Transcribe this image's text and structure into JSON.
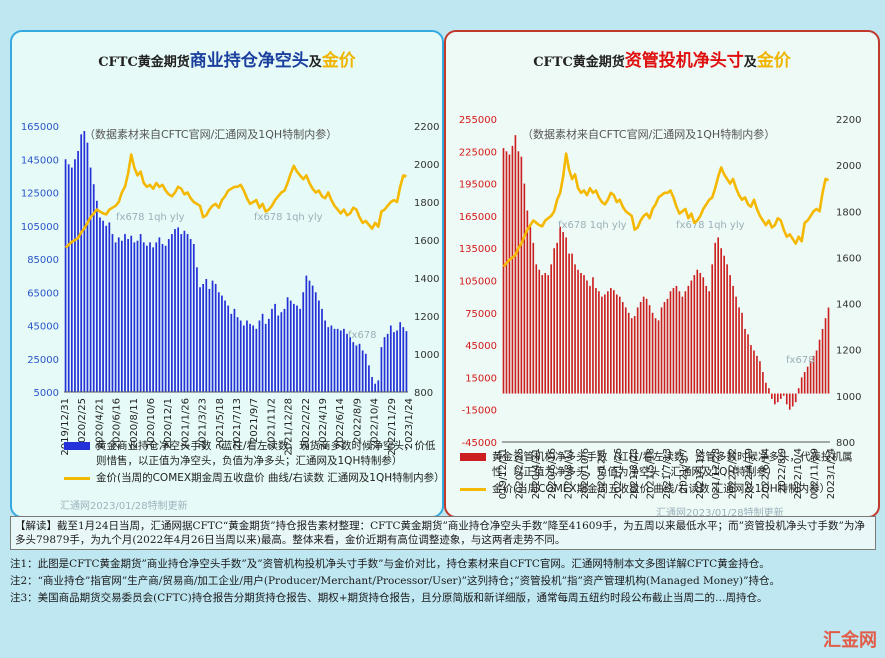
{
  "left_panel": {
    "title": {
      "part1": "CFTC黄金期货",
      "part2": "商业持仓净空头",
      "part3": "及",
      "part4": "金价"
    },
    "title_color": "#1b3f9e",
    "source_note": "（数据素材来自CFTC官网/汇通网及1QH特制内参）",
    "watermark1": "fx678 1qh yly",
    "watermark2": "fx678 1qh yly",
    "watermark3": "fx678",
    "legend_bar": "黄金商业持仓净空头手数（蓝柱/看左读数，现货商多数时候净空头，价低则惜售，以正值为净空头，负值为净多头；汇通网及1QH特制参）",
    "legend_line": "金价(当周的COMEX期金周五收盘价 曲线/右读数 汇通网及1QH特制内参）",
    "credit": "汇通网2023/01/28特制更新"
  },
  "right_panel": {
    "title": {
      "part1": "CFTC黄金期货",
      "part2": "资管投机净头寸",
      "part3": "及",
      "part4": "金价"
    },
    "title_color": "#e01010",
    "source_note": "（数据素材来自CFTC官网/汇通网及1QH特制内参）",
    "watermark1": "fx678 1qh yly",
    "watermark2": "fx678 1qh yly",
    "watermark3": "fx678",
    "legend_bar": "黄金资管机构净多头手数（红柱/看左读数，资管多数时候净多头，代表投机属性，以正值为净多头，负值为净空头；汇通网及1QH特制参）",
    "legend_line": "金价(当周COMEX期金周五收盘价 曲线/右读数 汇通网及1QH特制内参）",
    "credit": "汇通网2023/01/28特制更新"
  },
  "notes": {
    "interpretation": "【解读】截至1月24日当周，汇通网据CFTC“黄金期货”持仓报告素材整理：CFTC黄金期货”商业持仓净空头手数”降至41609手，为五周以来最低水平；而”资管投机净头寸手数”为净多头79879手，为九个月(2022年4月26日当周以来)最高。整体来看，金价近期有高位调整迹象，与这两者走势不同。",
    "note1": "注1：此图是CFTC黄金期货”商业持仓净空头手数”及”资管机构投机净头寸手数”与金价对比，持仓素材来自CFTC官网。汇通网特制本文多图详解CFTC黄金持仓。",
    "note2": "注2：“商业持仓”指官网”生产商/贸易商/加工企业/用户(Producer/Merchant/Processor/User)”这列持仓；”资管投机”指”资产管理机构(Managed Money)”持仓。",
    "note3": "注3：美国商品期货交易委员会(CFTC)持仓报告分期货持仓报告、期权+期货持仓报告，且分原简版和新详细版，通常每周五纽约时段公布截止当周二的…周持仓。",
    "logo": "汇金网"
  },
  "colors": {
    "commercial_bar": "#2430d8",
    "managed_bar": "#cc1f1f",
    "gold_line": "#f5b800"
  },
  "chart_data": [
    {
      "type": "bar",
      "title": "CFTC黄金期货商业持仓净空头及金价",
      "x_ticks": [
        "2019/12/31",
        "2020/2/25",
        "2020/4/21",
        "2020/6/16",
        "2020/8/11",
        "2020/10/6",
        "2020/12/1",
        "2021/1/26",
        "2021/3/23",
        "2021/5/18",
        "2021/7/13",
        "2021/9/7",
        "2021/11/2",
        "2021/12/28",
        "2022/2/22",
        "2022/4/19",
        "2022/6/14",
        "2022/8/9",
        "2022/10/4",
        "2022/11/29",
        "2023/1/24"
      ],
      "ylim_left": [
        5000,
        165000
      ],
      "yticks_left": [
        5000,
        25000,
        45000,
        65000,
        85000,
        105000,
        125000,
        145000,
        165000
      ],
      "ylim_right": [
        800,
        2200
      ],
      "yticks_right": [
        800,
        1000,
        1200,
        1400,
        1600,
        1800,
        2000,
        2200
      ],
      "series": [
        {
          "name": "黄金商业持仓净空头手数",
          "axis": "left",
          "values": [
            145000,
            142000,
            140000,
            145000,
            150000,
            160000,
            162000,
            155000,
            140000,
            130000,
            120000,
            110000,
            108000,
            105000,
            107000,
            100000,
            95000,
            98000,
            96000,
            100000,
            97000,
            99000,
            95000,
            96000,
            100000,
            95000,
            93000,
            95000,
            92000,
            95000,
            98000,
            94000,
            93000,
            97000,
            100000,
            103000,
            104000,
            100000,
            102000,
            100000,
            97000,
            94000,
            80000,
            68000,
            70000,
            73000,
            67000,
            72000,
            70000,
            65000,
            63000,
            60000,
            57000,
            52000,
            55000,
            50000,
            48000,
            45000,
            48000,
            46000,
            45000,
            43000,
            48000,
            52000,
            46000,
            49000,
            55000,
            58000,
            51000,
            53000,
            55000,
            62000,
            60000,
            58000,
            57000,
            55000,
            65000,
            75000,
            72000,
            69000,
            65000,
            60000,
            55000,
            48000,
            44000,
            45000,
            43000,
            43000,
            42000,
            43000,
            40000,
            38000,
            35000,
            33000,
            34000,
            30000,
            28000,
            21000,
            14000,
            10000,
            12000,
            32000,
            38000,
            40000,
            45000,
            41000,
            42000,
            47000,
            44000,
            41609
          ]
        },
        {
          "name": "金价",
          "axis": "right",
          "values": [
            1560,
            1575,
            1590,
            1600,
            1610,
            1640,
            1660,
            1690,
            1720,
            1740,
            1760,
            1750,
            1740,
            1735,
            1760,
            1770,
            1780,
            1800,
            1850,
            1880,
            1950,
            2050,
            1980,
            1940,
            1960,
            1900,
            1880,
            1890,
            1870,
            1900,
            1880,
            1890,
            1860,
            1840,
            1830,
            1850,
            1880,
            1870,
            1840,
            1850,
            1820,
            1800,
            1790,
            1780,
            1720,
            1730,
            1760,
            1780,
            1790,
            1770,
            1810,
            1830,
            1860,
            1870,
            1880,
            1880,
            1890,
            1860,
            1820,
            1790,
            1800,
            1810,
            1770,
            1790,
            1750,
            1760,
            1780,
            1810,
            1830,
            1850,
            1860,
            1900,
            1950,
            1990,
            1960,
            1940,
            1920,
            1940,
            1900,
            1870,
            1850,
            1860,
            1830,
            1820,
            1850,
            1810,
            1780,
            1760,
            1740,
            1760,
            1730,
            1740,
            1770,
            1760,
            1720,
            1690,
            1700,
            1680,
            1660,
            1690,
            1670,
            1750,
            1760,
            1780,
            1800,
            1810,
            1800,
            1880,
            1940,
            1935
          ]
        }
      ]
    },
    {
      "type": "bar",
      "title": "CFTC黄金期货资管投机净头寸及金价",
      "x_ticks": [
        "2019/12/31",
        "2020/2/25",
        "2020/4/21",
        "2020/6/16",
        "2020/8/11",
        "2020/10/6",
        "2020/12/1",
        "2021/1/26",
        "2021/3/23",
        "2021/5/18",
        "2021/7/13",
        "2021/9/7",
        "2021/11/2",
        "2021/12/28",
        "2022/2/22",
        "2022/4/19",
        "2022/6/14",
        "2022/8/9",
        "2022/10/4",
        "2022/11/29",
        "2023/1/24"
      ],
      "ylim_left": [
        -45000,
        255000
      ],
      "yticks_left": [
        -45000,
        -15000,
        15000,
        45000,
        75000,
        105000,
        135000,
        165000,
        195000,
        225000,
        255000
      ],
      "ylim_right": [
        800,
        2200
      ],
      "yticks_right": [
        800,
        1000,
        1200,
        1400,
        1600,
        1800,
        2000,
        2200
      ],
      "series": [
        {
          "name": "黄金资管机构净多头手数",
          "axis": "left",
          "values": [
            228000,
            225000,
            222000,
            230000,
            240000,
            225000,
            220000,
            195000,
            170000,
            155000,
            140000,
            120000,
            115000,
            110000,
            112000,
            110000,
            120000,
            135000,
            140000,
            155000,
            150000,
            145000,
            130000,
            130000,
            120000,
            115000,
            112000,
            110000,
            105000,
            100000,
            108000,
            98000,
            95000,
            90000,
            92000,
            95000,
            98000,
            96000,
            92000,
            90000,
            85000,
            80000,
            75000,
            70000,
            72000,
            80000,
            85000,
            90000,
            88000,
            82000,
            75000,
            70000,
            68000,
            80000,
            85000,
            88000,
            95000,
            98000,
            100000,
            95000,
            90000,
            95000,
            100000,
            105000,
            110000,
            115000,
            112000,
            108000,
            100000,
            95000,
            120000,
            140000,
            145000,
            135000,
            128000,
            120000,
            110000,
            100000,
            90000,
            80000,
            75000,
            60000,
            55000,
            45000,
            40000,
            35000,
            30000,
            20000,
            10000,
            5000,
            -5000,
            -10000,
            -8000,
            -5000,
            -2000,
            -10000,
            -15000,
            -12000,
            -8000,
            5000,
            15000,
            20000,
            25000,
            30000,
            35000,
            40000,
            50000,
            60000,
            70000,
            79879
          ]
        },
        {
          "name": "金价",
          "axis": "right",
          "values": [
            1560,
            1575,
            1590,
            1600,
            1610,
            1640,
            1660,
            1690,
            1720,
            1740,
            1760,
            1750,
            1740,
            1735,
            1760,
            1770,
            1780,
            1800,
            1850,
            1880,
            1950,
            2050,
            1980,
            1940,
            1960,
            1900,
            1880,
            1890,
            1870,
            1900,
            1880,
            1890,
            1860,
            1840,
            1830,
            1850,
            1880,
            1870,
            1840,
            1850,
            1820,
            1800,
            1790,
            1780,
            1720,
            1730,
            1760,
            1780,
            1790,
            1770,
            1810,
            1830,
            1860,
            1870,
            1880,
            1880,
            1890,
            1860,
            1820,
            1790,
            1800,
            1810,
            1770,
            1790,
            1750,
            1760,
            1780,
            1810,
            1830,
            1850,
            1860,
            1900,
            1950,
            1990,
            1960,
            1940,
            1920,
            1940,
            1900,
            1870,
            1850,
            1860,
            1830,
            1820,
            1850,
            1810,
            1780,
            1760,
            1740,
            1760,
            1730,
            1740,
            1770,
            1760,
            1720,
            1690,
            1700,
            1680,
            1660,
            1690,
            1670,
            1750,
            1760,
            1780,
            1800,
            1810,
            1800,
            1880,
            1940,
            1935
          ]
        }
      ]
    }
  ]
}
